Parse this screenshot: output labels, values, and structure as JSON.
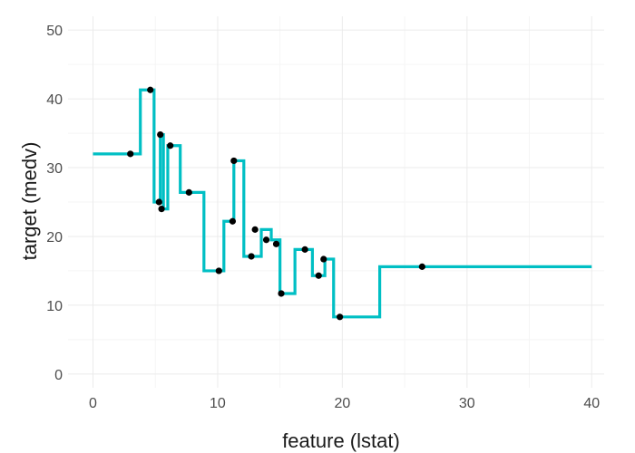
{
  "chart_data": {
    "type": "line",
    "title": "",
    "xlabel": "feature (lstat)",
    "ylabel": "target (medv)",
    "xlim": [
      -2,
      41
    ],
    "ylim": [
      -2,
      52
    ],
    "x_ticks": [
      0,
      10,
      20,
      30,
      40
    ],
    "y_ticks": [
      0,
      10,
      20,
      30,
      40,
      50
    ],
    "grid": true,
    "colors": {
      "step_line": "#00bfc4",
      "points": "#000000",
      "grid_major": "#ebebeb",
      "grid_minor": "#f5f5f5"
    },
    "series": [
      {
        "type": "step",
        "x": [
          0,
          3.8,
          3.8,
          4.9,
          4.9,
          5.4,
          5.4,
          5.65,
          5.65,
          6.0,
          6.0,
          7.0,
          7.0,
          8.9,
          8.9,
          10.5,
          10.5,
          11.3,
          11.3,
          12.1,
          12.1,
          13.5,
          13.5,
          14.3,
          14.3,
          15.0,
          15.0,
          16.2,
          16.2,
          17.6,
          17.6,
          18.6,
          18.6,
          19.3,
          19.3,
          23.0,
          23.0,
          40.0
        ],
        "y": [
          32.0,
          32.0,
          41.3,
          41.3,
          25.0,
          25.0,
          34.8,
          34.8,
          24.0,
          24.0,
          33.2,
          33.2,
          26.4,
          26.4,
          15.0,
          15.0,
          22.2,
          22.2,
          31.0,
          31.0,
          17.1,
          17.1,
          21.0,
          21.0,
          19.5,
          19.5,
          11.7,
          11.7,
          18.1,
          18.1,
          14.3,
          14.3,
          16.7,
          16.7,
          8.3,
          8.3,
          15.6,
          15.6
        ]
      },
      {
        "type": "scatter",
        "x": [
          3.0,
          4.6,
          5.4,
          5.3,
          5.5,
          6.2,
          7.7,
          10.1,
          11.2,
          11.3,
          12.7,
          13.0,
          13.9,
          14.7,
          15.1,
          17.0,
          18.1,
          18.5,
          19.8,
          26.4
        ],
        "y": [
          32.0,
          41.3,
          34.8,
          25.0,
          24.0,
          33.2,
          26.4,
          15.0,
          22.2,
          31.0,
          17.1,
          21.0,
          19.5,
          18.9,
          11.7,
          18.1,
          14.3,
          16.7,
          8.3,
          15.6
        ]
      }
    ]
  }
}
